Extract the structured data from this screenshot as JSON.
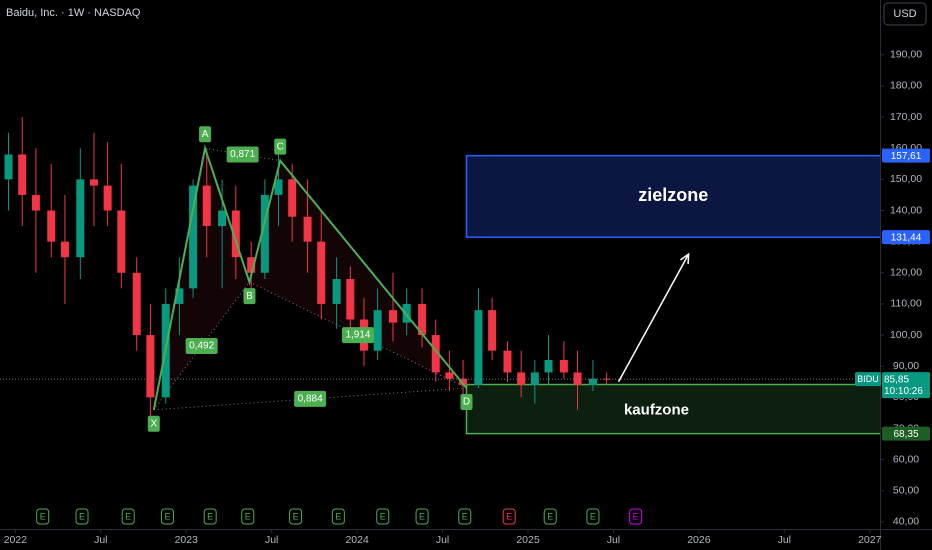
{
  "chart_data": {
    "type": "candlestick",
    "title": "Baidu, Inc. · 1W · NASDAQ",
    "currency": "USD",
    "xlim": [
      2021.91,
      2027.06
    ],
    "ylim": [
      37.4,
      207.6
    ],
    "xticks": [
      {
        "value": 2022,
        "label": "2022"
      },
      {
        "value": 2022.5,
        "label": "Jul"
      },
      {
        "value": 2023,
        "label": "2023"
      },
      {
        "value": 2023.5,
        "label": "Jul"
      },
      {
        "value": 2024,
        "label": "2024"
      },
      {
        "value": 2024.5,
        "label": "Jul"
      },
      {
        "value": 2025,
        "label": "2025"
      },
      {
        "value": 2025.5,
        "label": "Jul"
      },
      {
        "value": 2026,
        "label": "2026"
      },
      {
        "value": 2026.5,
        "label": "Jul"
      },
      {
        "value": 2027,
        "label": "2027"
      }
    ],
    "yticks": [
      {
        "value": 40,
        "label": "40,00"
      },
      {
        "value": 50,
        "label": "50,00"
      },
      {
        "value": 60,
        "label": "60,00"
      },
      {
        "value": 70,
        "label": "70,00"
      },
      {
        "value": 80,
        "label": "80,00"
      },
      {
        "value": 90,
        "label": "90,00"
      },
      {
        "value": 100,
        "label": "100,00"
      },
      {
        "value": 110,
        "label": "110,00"
      },
      {
        "value": 120,
        "label": "120,00"
      },
      {
        "value": 130,
        "label": "130,00"
      },
      {
        "value": 140,
        "label": "140,00"
      },
      {
        "value": 150,
        "label": "150,00"
      },
      {
        "value": 160,
        "label": "160,00"
      },
      {
        "value": 170,
        "label": "170,00"
      },
      {
        "value": 180,
        "label": "180,00"
      },
      {
        "value": 190,
        "label": "190,00"
      }
    ],
    "up_color": "#089981",
    "down_color": "#f23645",
    "x": [
      2021.96,
      2022.04,
      2022.12,
      2022.21,
      2022.29,
      2022.38,
      2022.46,
      2022.54,
      2022.62,
      2022.71,
      2022.79,
      2022.88,
      2022.96,
      2023.04,
      2023.12,
      2023.21,
      2023.29,
      2023.38,
      2023.46,
      2023.54,
      2023.62,
      2023.71,
      2023.79,
      2023.88,
      2023.96,
      2024.04,
      2024.12,
      2024.21,
      2024.29,
      2024.38,
      2024.46,
      2024.54,
      2024.62,
      2024.71,
      2024.79,
      2024.88,
      2024.96,
      2025.04,
      2025.12,
      2025.21,
      2025.29,
      2025.38,
      2025.46
    ],
    "open": [
      150,
      158,
      145,
      140,
      130,
      125,
      150,
      148,
      140,
      120,
      100,
      80,
      110,
      115,
      148,
      135,
      140,
      125,
      120,
      145,
      150,
      138,
      130,
      110,
      118,
      105,
      95,
      108,
      104,
      110,
      100,
      88,
      86,
      84,
      108,
      95,
      88,
      84,
      88,
      92,
      88,
      84,
      86
    ],
    "high": [
      165,
      170,
      160,
      155,
      145,
      160,
      165,
      162,
      155,
      125,
      110,
      115,
      125,
      150,
      160,
      150,
      148,
      130,
      150,
      158,
      155,
      150,
      140,
      125,
      122,
      112,
      115,
      120,
      115,
      115,
      105,
      95,
      92,
      115,
      112,
      98,
      95,
      92,
      100,
      98,
      95,
      92,
      88
    ],
    "low": [
      140,
      135,
      120,
      125,
      110,
      118,
      135,
      135,
      115,
      95,
      74,
      78,
      100,
      112,
      125,
      115,
      118,
      115,
      118,
      135,
      130,
      120,
      105,
      102,
      100,
      90,
      92,
      98,
      100,
      96,
      85,
      82,
      81,
      83,
      92,
      85,
      80,
      78,
      84,
      86,
      76,
      82,
      84
    ],
    "close": [
      158,
      145,
      140,
      130,
      125,
      150,
      148,
      140,
      120,
      100,
      80,
      110,
      115,
      148,
      135,
      140,
      125,
      120,
      145,
      150,
      138,
      130,
      110,
      118,
      105,
      95,
      108,
      104,
      110,
      100,
      88,
      86,
      84,
      108,
      95,
      88,
      84,
      88,
      92,
      88,
      84,
      86,
      85.85
    ],
    "pattern": {
      "color": "#4caf50",
      "points": [
        {
          "label": "X",
          "x": 2022.81,
          "y": 76
        },
        {
          "label": "A",
          "x": 2023.11,
          "y": 160
        },
        {
          "label": "B",
          "x": 2023.37,
          "y": 117
        },
        {
          "label": "C",
          "x": 2023.55,
          "y": 156
        },
        {
          "label": "D",
          "x": 2024.64,
          "y": 83
        }
      ],
      "ratios": [
        {
          "from": 0,
          "to": 2,
          "label": "0,492"
        },
        {
          "from": 1,
          "to": 3,
          "label": "0,871"
        },
        {
          "from": 2,
          "to": 4,
          "label": "1,914"
        },
        {
          "from": 0,
          "to": 4,
          "label": "0,884"
        }
      ]
    },
    "zones": [
      {
        "label": "zielzone",
        "top": 157.61,
        "bottom": 131.44,
        "x_start": 2024.64,
        "color": "#2962ff",
        "fill": "#0d1a4d",
        "top_label": "157,61",
        "bottom_label": "131,44"
      },
      {
        "label": "kaufzone",
        "top": 84.12,
        "bottom": 68.35,
        "x_start": 2024.64,
        "color": "#4caf50",
        "fill": "#0f2410",
        "top_label": "84,12",
        "bottom_label": "68,35"
      }
    ],
    "arrow": {
      "x": [
        2025.53,
        2025.94
      ],
      "y": [
        85,
        126
      ]
    },
    "last_price": {
      "symbol": "BIDU",
      "value": 85.85,
      "label": "85,85",
      "countdown": "10:10:26"
    },
    "earnings": [
      {
        "x": 2022.16,
        "label": "E",
        "color": "#4caf50"
      },
      {
        "x": 2022.39,
        "label": "E",
        "color": "#4caf50"
      },
      {
        "x": 2022.66,
        "label": "E",
        "color": "#4caf50"
      },
      {
        "x": 2022.89,
        "label": "E",
        "color": "#4caf50"
      },
      {
        "x": 2023.14,
        "label": "E",
        "color": "#4caf50"
      },
      {
        "x": 2023.36,
        "label": "E",
        "color": "#4caf50"
      },
      {
        "x": 2023.64,
        "label": "E",
        "color": "#4caf50"
      },
      {
        "x": 2023.89,
        "label": "E",
        "color": "#4caf50"
      },
      {
        "x": 2024.15,
        "label": "E",
        "color": "#4caf50"
      },
      {
        "x": 2024.38,
        "label": "E",
        "color": "#4caf50"
      },
      {
        "x": 2024.63,
        "label": "E",
        "color": "#4caf50"
      },
      {
        "x": 2024.89,
        "label": "E",
        "color": "#f23645"
      },
      {
        "x": 2025.13,
        "label": "E",
        "color": "#4caf50"
      },
      {
        "x": 2025.38,
        "label": "E",
        "color": "#4caf50"
      },
      {
        "x": 2025.63,
        "label": "E",
        "color": "#d500f9"
      }
    ]
  }
}
